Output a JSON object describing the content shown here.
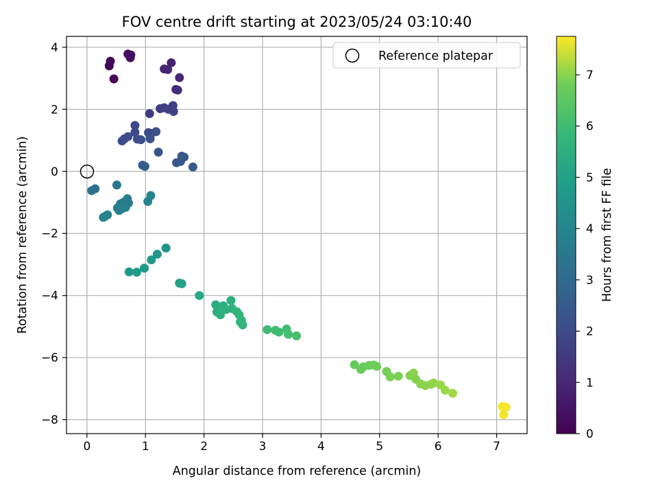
{
  "chart_data": {
    "type": "scatter",
    "title": "FOV centre drift starting at 2023/05/24 03:10:40",
    "xlabel": "Angular distance from reference (arcmin)",
    "ylabel": "Rotation from reference (arcmin)",
    "colorbar_label": "Hours from first FF file",
    "xlim": [
      -0.35,
      7.52
    ],
    "ylim": [
      -8.45,
      4.35
    ],
    "clim": [
      0,
      7.75
    ],
    "colormap": "viridis",
    "grid": true,
    "legend_position": "top-right",
    "xticks": [
      "0",
      "1",
      "2",
      "3",
      "4",
      "5",
      "6",
      "7"
    ],
    "yticks": [
      "−8",
      "−6",
      "−4",
      "−2",
      "0",
      "2",
      "4"
    ],
    "cticks": [
      "0",
      "1",
      "2",
      "3",
      "4",
      "5",
      "6",
      "7"
    ],
    "reference": {
      "label": "Reference platepar",
      "x": 0,
      "y": 0
    },
    "points": [
      [
        0.4,
        3.55,
        0.1
      ],
      [
        0.38,
        3.4,
        0.12
      ],
      [
        0.46,
        2.98,
        0.05
      ],
      [
        0.7,
        3.78,
        0.3
      ],
      [
        0.75,
        3.75,
        0.35
      ],
      [
        0.74,
        3.66,
        0.4
      ],
      [
        1.44,
        3.5,
        0.8
      ],
      [
        1.32,
        3.3,
        0.9
      ],
      [
        1.38,
        3.28,
        0.95
      ],
      [
        1.58,
        3.02,
        1.0
      ],
      [
        1.52,
        2.64,
        1.1
      ],
      [
        1.55,
        2.62,
        1.15
      ],
      [
        1.07,
        1.86,
        1.55
      ],
      [
        1.25,
        2.02,
        1.6
      ],
      [
        1.32,
        2.05,
        1.65
      ],
      [
        1.47,
        2.12,
        1.7
      ],
      [
        1.48,
        1.93,
        1.75
      ],
      [
        1.39,
        2.0,
        1.65
      ],
      [
        0.6,
        0.98,
        1.95
      ],
      [
        0.64,
        1.05,
        2.0
      ],
      [
        0.7,
        1.12,
        2.05
      ],
      [
        0.82,
        1.48,
        1.9
      ],
      [
        0.82,
        1.26,
        1.95
      ],
      [
        0.86,
        1.04,
        2.1
      ],
      [
        0.92,
        1.02,
        2.15
      ],
      [
        1.05,
        1.25,
        2.1
      ],
      [
        1.1,
        1.22,
        2.0
      ],
      [
        1.18,
        1.28,
        2.15
      ],
      [
        1.08,
        1.05,
        2.2
      ],
      [
        1.22,
        0.62,
        2.3
      ],
      [
        0.95,
        0.2,
        2.5
      ],
      [
        0.99,
        0.16,
        2.55
      ],
      [
        1.53,
        0.28,
        2.4
      ],
      [
        1.6,
        0.32,
        2.45
      ],
      [
        1.62,
        0.49,
        2.35
      ],
      [
        1.66,
        0.46,
        2.4
      ],
      [
        1.81,
        0.14,
        2.5
      ],
      [
        0.08,
        -0.62,
        3.3
      ],
      [
        0.14,
        -0.56,
        3.2
      ],
      [
        0.51,
        -0.44,
        3.35
      ],
      [
        0.57,
        -1.05,
        3.6
      ],
      [
        0.62,
        -1.0,
        3.65
      ],
      [
        0.69,
        -0.88,
        3.7
      ],
      [
        0.71,
        -1.02,
        3.65
      ],
      [
        0.52,
        -1.18,
        3.8
      ],
      [
        0.55,
        -1.26,
        3.75
      ],
      [
        0.6,
        -1.2,
        3.7
      ],
      [
        0.66,
        -1.16,
        3.8
      ],
      [
        0.35,
        -1.4,
        3.9
      ],
      [
        0.28,
        -1.48,
        3.95
      ],
      [
        0.31,
        -1.45,
        3.9
      ],
      [
        1.04,
        -0.97,
        3.95
      ],
      [
        1.09,
        -0.78,
        3.9
      ],
      [
        1.35,
        -2.47,
        4.55
      ],
      [
        1.2,
        -2.67,
        4.6
      ],
      [
        1.1,
        -2.85,
        4.65
      ],
      [
        0.98,
        -3.12,
        4.7
      ],
      [
        0.72,
        -3.24,
        4.7
      ],
      [
        0.85,
        -3.25,
        4.75
      ],
      [
        1.58,
        -3.6,
        5.0
      ],
      [
        1.62,
        -3.62,
        5.05
      ],
      [
        1.92,
        -4.0,
        5.2
      ],
      [
        2.2,
        -4.3,
        5.4
      ],
      [
        2.22,
        -4.53,
        5.45
      ],
      [
        2.28,
        -4.62,
        5.5
      ],
      [
        2.3,
        -4.48,
        5.55
      ],
      [
        2.33,
        -4.33,
        5.5
      ],
      [
        2.38,
        -4.45,
        5.55
      ],
      [
        2.46,
        -4.16,
        5.5
      ],
      [
        2.48,
        -4.42,
        5.6
      ],
      [
        2.56,
        -4.52,
        5.65
      ],
      [
        2.6,
        -4.62,
        5.65
      ],
      [
        2.64,
        -4.8,
        5.7
      ],
      [
        2.66,
        -4.95,
        5.75
      ],
      [
        2.62,
        -4.85,
        5.7
      ],
      [
        3.08,
        -5.1,
        5.95
      ],
      [
        3.22,
        -5.12,
        6.0
      ],
      [
        3.28,
        -5.18,
        6.0
      ],
      [
        3.41,
        -5.08,
        6.05
      ],
      [
        3.44,
        -5.25,
        6.1
      ],
      [
        3.58,
        -5.3,
        6.15
      ],
      [
        4.57,
        -6.23,
        6.65
      ],
      [
        4.68,
        -6.38,
        6.7
      ],
      [
        4.72,
        -6.3,
        6.7
      ],
      [
        4.82,
        -6.25,
        6.75
      ],
      [
        4.9,
        -6.24,
        6.75
      ],
      [
        4.95,
        -6.28,
        6.8
      ],
      [
        5.12,
        -6.45,
        6.85
      ],
      [
        5.18,
        -6.62,
        6.9
      ],
      [
        5.32,
        -6.6,
        6.9
      ],
      [
        5.52,
        -6.58,
        6.95
      ],
      [
        5.58,
        -6.5,
        7.0
      ],
      [
        5.62,
        -6.7,
        6.95
      ],
      [
        5.7,
        -6.85,
        7.0
      ],
      [
        5.78,
        -6.9,
        7.0
      ],
      [
        5.88,
        -6.86,
        7.05
      ],
      [
        5.92,
        -6.82,
        7.05
      ],
      [
        6.04,
        -6.88,
        7.1
      ],
      [
        6.12,
        -7.05,
        7.1
      ],
      [
        6.25,
        -7.15,
        7.15
      ],
      [
        7.1,
        -7.58,
        7.7
      ],
      [
        7.16,
        -7.6,
        7.72
      ],
      [
        7.12,
        -7.84,
        7.68
      ]
    ]
  }
}
